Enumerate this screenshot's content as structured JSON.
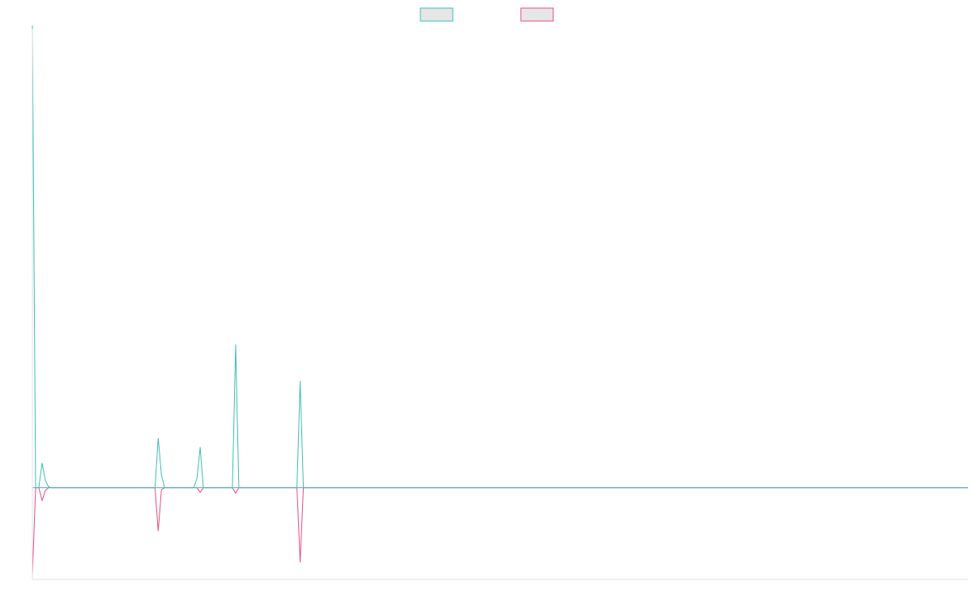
{
  "chart_data": {
    "type": "line",
    "title": "",
    "xlabel": "",
    "ylabel": "",
    "x_range": [
      0,
      290
    ],
    "ylim": [
      -100,
      500
    ],
    "baseline": 0,
    "legend": {
      "placement": "top-center",
      "entries": [
        {
          "series_index": 0,
          "label": ""
        },
        {
          "series_index": 1,
          "label": ""
        }
      ]
    },
    "grid": false,
    "series": [
      {
        "color": "#3dbdb5",
        "fill": "#e6e6e6",
        "points": [
          [
            0,
            504
          ],
          [
            1,
            0
          ],
          [
            2,
            0
          ],
          [
            3,
            27
          ],
          [
            4,
            8
          ],
          [
            5,
            1
          ],
          [
            6,
            0
          ],
          [
            7,
            0
          ],
          [
            38,
            0
          ],
          [
            39,
            54
          ],
          [
            40,
            14
          ],
          [
            41,
            0
          ],
          [
            50,
            0
          ],
          [
            51,
            10
          ],
          [
            52,
            44
          ],
          [
            53,
            0
          ],
          [
            62,
            0
          ],
          [
            63,
            156
          ],
          [
            64,
            0
          ],
          [
            82,
            0
          ],
          [
            83,
            116
          ],
          [
            84,
            0
          ],
          [
            290,
            0
          ]
        ]
      },
      {
        "color": "#e84d7a",
        "fill": "#e6e6e6",
        "points": [
          [
            0,
            -96
          ],
          [
            1,
            0
          ],
          [
            2,
            0
          ],
          [
            3,
            -14
          ],
          [
            4,
            -3
          ],
          [
            5,
            0
          ],
          [
            6,
            0
          ],
          [
            7,
            0
          ],
          [
            38,
            0
          ],
          [
            39,
            -47
          ],
          [
            40,
            -2
          ],
          [
            41,
            0
          ],
          [
            50,
            0
          ],
          [
            51,
            0
          ],
          [
            52,
            -5
          ],
          [
            53,
            0
          ],
          [
            62,
            0
          ],
          [
            63,
            -6
          ],
          [
            64,
            0
          ],
          [
            82,
            0
          ],
          [
            83,
            -81
          ],
          [
            84,
            0
          ],
          [
            290,
            0
          ]
        ]
      }
    ]
  }
}
